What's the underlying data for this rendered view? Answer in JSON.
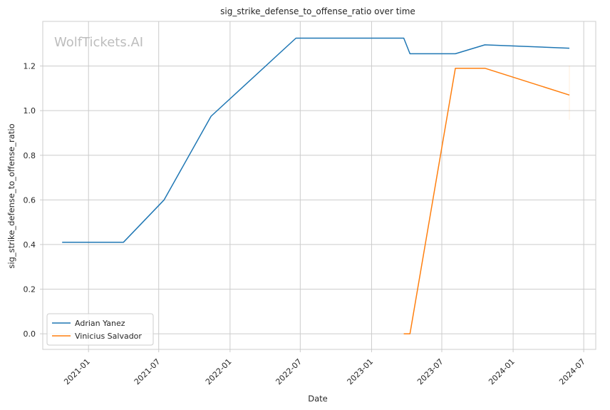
{
  "watermark": "WolfTickets.AI",
  "chart_data": {
    "type": "line",
    "title": "sig_strike_defense_to_offense_ratio over time",
    "xlabel": "Date",
    "ylabel": "sig_strike_defense_to_offense_ratio",
    "x_ticks": [
      "2021-01",
      "2021-07",
      "2022-01",
      "2022-07",
      "2023-01",
      "2023-07",
      "2024-01",
      "2024-07"
    ],
    "y_ticks": [
      "0.0",
      "0.2",
      "0.4",
      "0.6",
      "0.8",
      "1.0",
      "1.2"
    ],
    "xlim": [
      "2020-09-05",
      "2024-08-01"
    ],
    "ylim": [
      -0.07,
      1.4
    ],
    "grid": true,
    "legend_position": "lower-left",
    "series": [
      {
        "name": "Adrian Yanez",
        "color": "#1f77b4",
        "points": [
          [
            "2020-10-25",
            0.41
          ],
          [
            "2021-04-01",
            0.41
          ],
          [
            "2021-07-15",
            0.6
          ],
          [
            "2021-11-13",
            0.975
          ],
          [
            "2022-06-20",
            1.325
          ],
          [
            "2023-03-25",
            1.325
          ],
          [
            "2023-04-10",
            1.255
          ],
          [
            "2023-08-05",
            1.255
          ],
          [
            "2023-10-20",
            1.295
          ],
          [
            "2024-05-25",
            1.28
          ]
        ]
      },
      {
        "name": "Vinicius Salvador",
        "color": "#ff7f0e",
        "points": [
          [
            "2023-03-25",
            0.0
          ],
          [
            "2023-04-10",
            0.0
          ],
          [
            "2023-08-05",
            1.19
          ],
          [
            "2023-10-20",
            1.19
          ],
          [
            "2024-05-25",
            1.07
          ]
        ]
      }
    ]
  }
}
